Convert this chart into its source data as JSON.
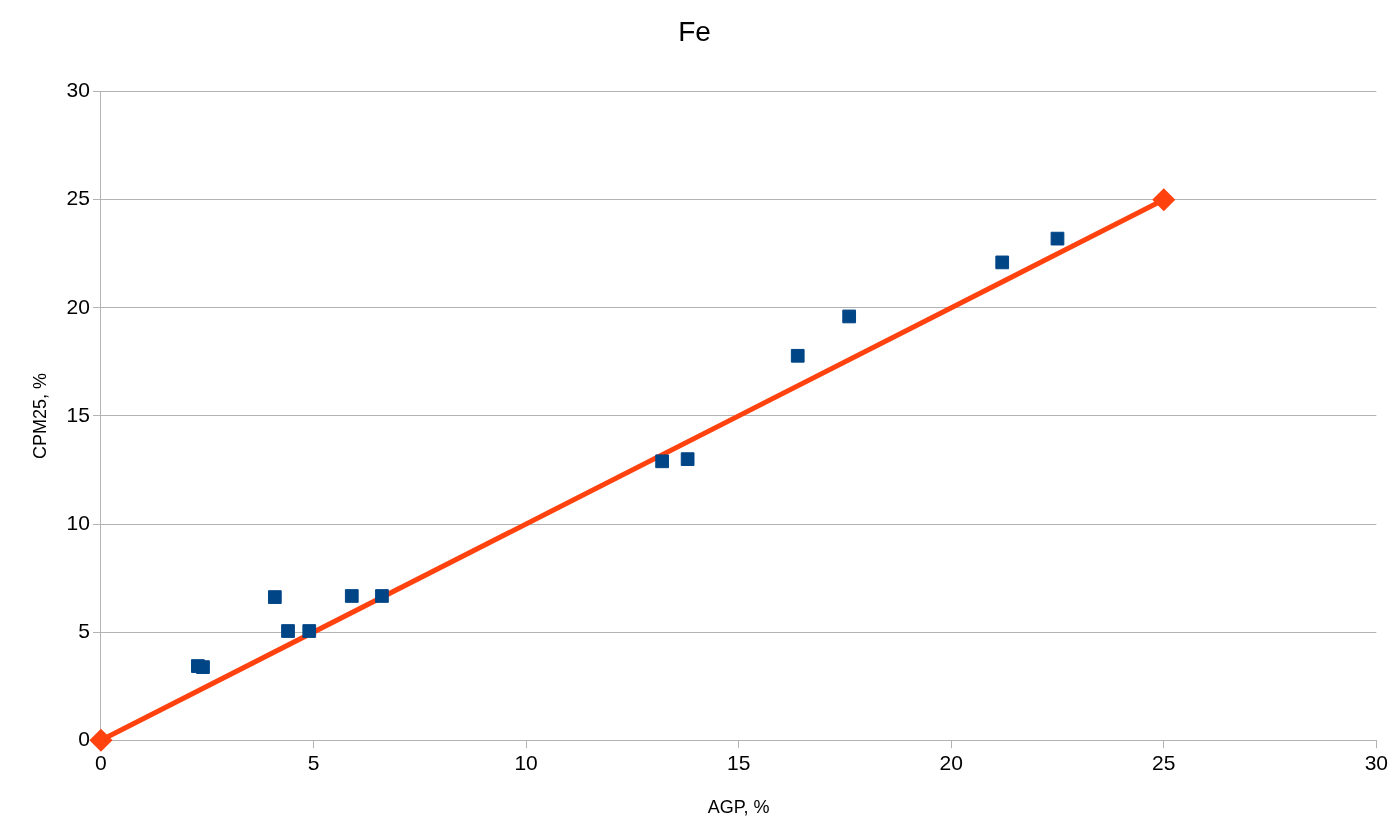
{
  "chart_data": {
    "type": "scatter",
    "title": "Fe",
    "xlabel": "AGP, %",
    "ylabel": "CPM25, %",
    "xlim": [
      0,
      30
    ],
    "xticks": [
      0,
      5,
      10,
      15,
      20,
      25,
      30
    ],
    "ylim": [
      0,
      30
    ],
    "yticks": [
      0,
      5,
      10,
      15,
      20,
      25,
      30
    ],
    "grid": "y",
    "legend": false,
    "series": [
      {
        "color": "#004586",
        "marker": "square",
        "x": [
          2.28,
          2.4,
          4.09,
          4.4,
          4.9,
          5.9,
          6.61,
          13.2,
          13.8,
          16.39,
          17.6,
          21.2,
          22.5
        ],
        "values": [
          3.43,
          3.38,
          6.62,
          5.05,
          5.05,
          6.67,
          6.67,
          12.9,
          13.0,
          17.78,
          19.6,
          22.1,
          23.2
        ]
      },
      {
        "type": "line",
        "color": "#ff420e",
        "marker": "diamond",
        "line_style": "solid",
        "x": [
          0,
          25
        ],
        "values": [
          0,
          25
        ]
      }
    ]
  }
}
